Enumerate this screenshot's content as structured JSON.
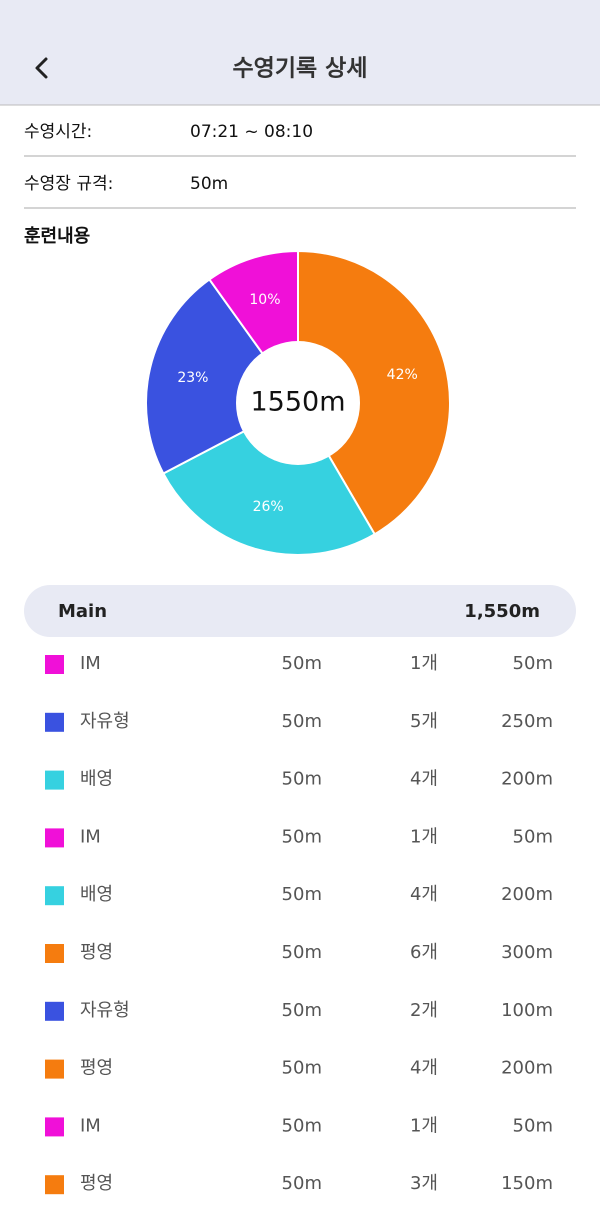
{
  "header": {
    "title": "수영기록 상세"
  },
  "info": [
    {
      "label": "수영시간:",
      "value": "07:21 ~ 08:10"
    },
    {
      "label": "수영장 규격:",
      "value": "50m"
    }
  ],
  "section_title": "훈련내용",
  "chart_data": {
    "type": "pie",
    "donut": true,
    "center_label": "1550m",
    "values": [
      42,
      26,
      23,
      10
    ],
    "value_labels": [
      "42%",
      "26%",
      "23%",
      "10%"
    ],
    "colors": [
      "#f57c0f",
      "#36d1e0",
      "#3a52e0",
      "#f010d8"
    ]
  },
  "list": {
    "header": {
      "name": "Main",
      "total": "1,550m"
    },
    "rows": [
      {
        "color": "#f010d8",
        "name": "IM",
        "length": "50m",
        "count": "1개",
        "total": "50m"
      },
      {
        "color": "#3a52e0",
        "name": "자유형",
        "length": "50m",
        "count": "5개",
        "total": "250m"
      },
      {
        "color": "#36d1e0",
        "name": "배영",
        "length": "50m",
        "count": "4개",
        "total": "200m"
      },
      {
        "color": "#f010d8",
        "name": "IM",
        "length": "50m",
        "count": "1개",
        "total": "50m"
      },
      {
        "color": "#36d1e0",
        "name": "배영",
        "length": "50m",
        "count": "4개",
        "total": "200m"
      },
      {
        "color": "#f57c0f",
        "name": "평영",
        "length": "50m",
        "count": "6개",
        "total": "300m"
      },
      {
        "color": "#3a52e0",
        "name": "자유형",
        "length": "50m",
        "count": "2개",
        "total": "100m"
      },
      {
        "color": "#f57c0f",
        "name": "평영",
        "length": "50m",
        "count": "4개",
        "total": "200m"
      },
      {
        "color": "#f010d8",
        "name": "IM",
        "length": "50m",
        "count": "1개",
        "total": "50m"
      },
      {
        "color": "#f57c0f",
        "name": "평영",
        "length": "50m",
        "count": "3개",
        "total": "150m"
      }
    ]
  }
}
